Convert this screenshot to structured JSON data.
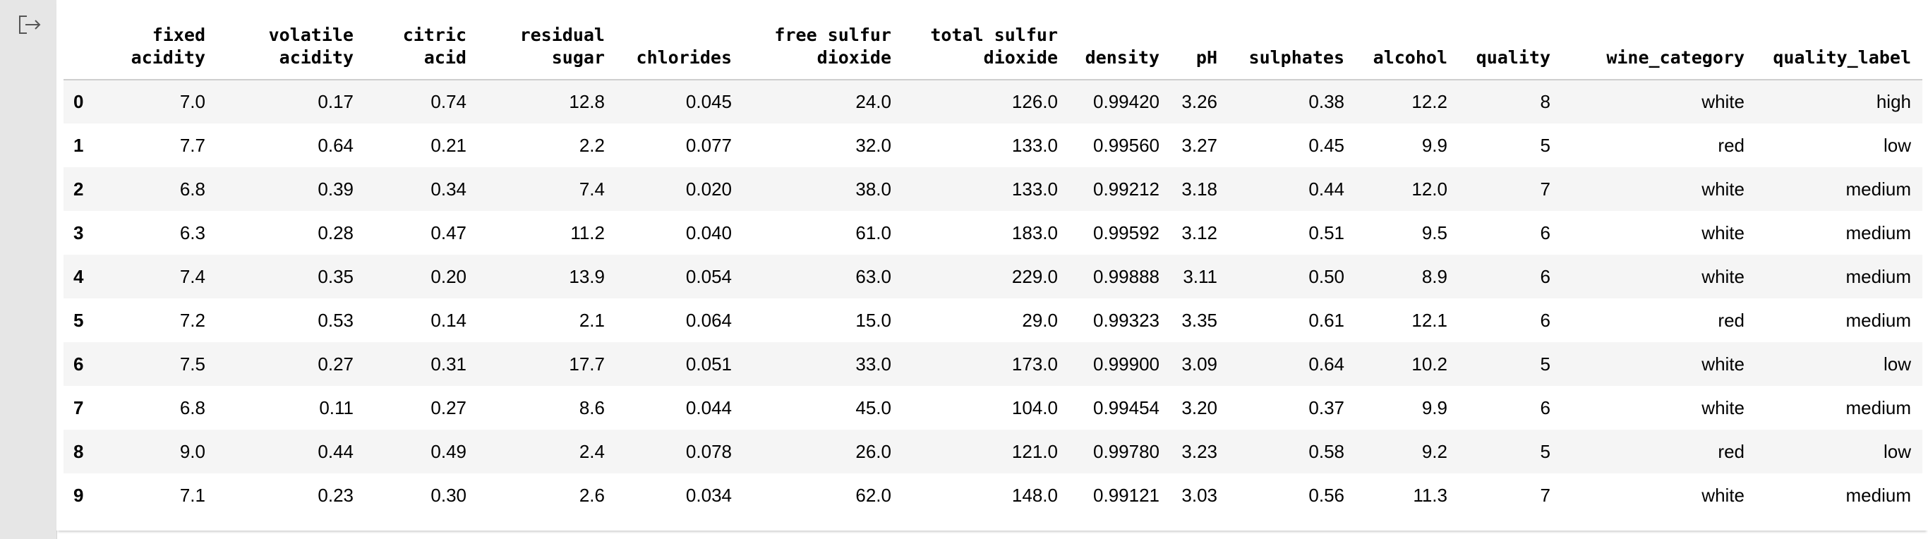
{
  "table": {
    "columns": [
      "fixed\nacidity",
      "volatile\nacidity",
      "citric\nacid",
      "residual\nsugar",
      "chlorides",
      "free sulfur\ndioxide",
      "total sulfur\ndioxide",
      "density",
      "pH",
      "sulphates",
      "alcohol",
      "quality",
      "wine_category",
      "quality_label"
    ],
    "rows": [
      {
        "index": "0",
        "cells": [
          "7.0",
          "0.17",
          "0.74",
          "12.8",
          "0.045",
          "24.0",
          "126.0",
          "0.99420",
          "3.26",
          "0.38",
          "12.2",
          "8",
          "white",
          "high"
        ]
      },
      {
        "index": "1",
        "cells": [
          "7.7",
          "0.64",
          "0.21",
          "2.2",
          "0.077",
          "32.0",
          "133.0",
          "0.99560",
          "3.27",
          "0.45",
          "9.9",
          "5",
          "red",
          "low"
        ]
      },
      {
        "index": "2",
        "cells": [
          "6.8",
          "0.39",
          "0.34",
          "7.4",
          "0.020",
          "38.0",
          "133.0",
          "0.99212",
          "3.18",
          "0.44",
          "12.0",
          "7",
          "white",
          "medium"
        ]
      },
      {
        "index": "3",
        "cells": [
          "6.3",
          "0.28",
          "0.47",
          "11.2",
          "0.040",
          "61.0",
          "183.0",
          "0.99592",
          "3.12",
          "0.51",
          "9.5",
          "6",
          "white",
          "medium"
        ]
      },
      {
        "index": "4",
        "cells": [
          "7.4",
          "0.35",
          "0.20",
          "13.9",
          "0.054",
          "63.0",
          "229.0",
          "0.99888",
          "3.11",
          "0.50",
          "8.9",
          "6",
          "white",
          "medium"
        ]
      },
      {
        "index": "5",
        "cells": [
          "7.2",
          "0.53",
          "0.14",
          "2.1",
          "0.064",
          "15.0",
          "29.0",
          "0.99323",
          "3.35",
          "0.61",
          "12.1",
          "6",
          "red",
          "medium"
        ]
      },
      {
        "index": "6",
        "cells": [
          "7.5",
          "0.27",
          "0.31",
          "17.7",
          "0.051",
          "33.0",
          "173.0",
          "0.99900",
          "3.09",
          "0.64",
          "10.2",
          "5",
          "white",
          "low"
        ]
      },
      {
        "index": "7",
        "cells": [
          "6.8",
          "0.11",
          "0.27",
          "8.6",
          "0.044",
          "45.0",
          "104.0",
          "0.99454",
          "3.20",
          "0.37",
          "9.9",
          "6",
          "white",
          "medium"
        ]
      },
      {
        "index": "8",
        "cells": [
          "9.0",
          "0.44",
          "0.49",
          "2.4",
          "0.078",
          "26.0",
          "121.0",
          "0.99780",
          "3.23",
          "0.58",
          "9.2",
          "5",
          "red",
          "low"
        ]
      },
      {
        "index": "9",
        "cells": [
          "7.1",
          "0.23",
          "0.30",
          "2.6",
          "0.034",
          "62.0",
          "148.0",
          "0.99121",
          "3.03",
          "0.56",
          "11.3",
          "7",
          "white",
          "medium"
        ]
      }
    ]
  },
  "icons": {
    "output": "output-icon"
  },
  "colors": {
    "gutter": "#e6e6e6",
    "row_stripe": "#f5f5f5",
    "header_rule": "#cfcfcf"
  }
}
